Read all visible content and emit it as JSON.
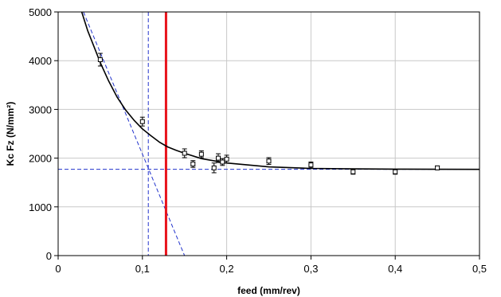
{
  "chart_data": {
    "type": "scatter",
    "title": "",
    "xlabel": "feed (mm/rev)",
    "ylabel": "Kc Fz (N/mm²)",
    "xlim": [
      0,
      0.5
    ],
    "ylim": [
      0,
      5000
    ],
    "x_ticks": [
      0,
      0.1,
      0.2,
      0.3,
      0.4,
      0.5
    ],
    "x_tick_labels": [
      "0",
      "0,1",
      "0,2",
      "0,3",
      "0,4",
      "0,5"
    ],
    "y_ticks": [
      0,
      1000,
      2000,
      3000,
      4000,
      5000
    ],
    "y_tick_labels": [
      "0",
      "1000",
      "2000",
      "3000",
      "4000",
      "5000"
    ],
    "grid": true,
    "series": [
      {
        "kind": "points_with_error_bars",
        "marker": "open-square",
        "color": "#000000",
        "x": [
          0.05,
          0.1,
          0.15,
          0.16,
          0.17,
          0.185,
          0.19,
          0.195,
          0.2,
          0.25,
          0.3,
          0.35,
          0.4,
          0.45
        ],
        "y": [
          4020,
          2750,
          2100,
          1880,
          2080,
          1800,
          2000,
          1920,
          1980,
          1940,
          1860,
          1720,
          1720,
          1800
        ],
        "error": [
          130,
          90,
          90,
          70,
          70,
          100,
          90,
          70,
          80,
          70,
          60,
          50,
          50,
          40
        ]
      },
      {
        "kind": "fit_curve",
        "color": "#000000",
        "x": [
          0.028,
          0.035,
          0.04,
          0.05,
          0.06,
          0.07,
          0.08,
          0.09,
          0.1,
          0.11,
          0.12,
          0.13,
          0.14,
          0.15,
          0.17,
          0.2,
          0.25,
          0.3,
          0.35,
          0.4,
          0.45,
          0.5
        ],
        "y": [
          5000,
          4620,
          4400,
          3960,
          3580,
          3250,
          2990,
          2780,
          2600,
          2460,
          2330,
          2230,
          2160,
          2100,
          1990,
          1900,
          1820,
          1790,
          1780,
          1775,
          1772,
          1770
        ]
      },
      {
        "kind": "tangent_line",
        "style": "dashed",
        "color": "#2233cc",
        "x": [
          0.03,
          0.15
        ],
        "y": [
          5000,
          0
        ]
      },
      {
        "kind": "horizontal_asymptote",
        "style": "dashed",
        "color": "#2233cc",
        "y": 1770
      },
      {
        "kind": "vertical_reference",
        "style": "dashed",
        "color": "#2233cc",
        "x": 0.107
      },
      {
        "kind": "vertical_marker",
        "style": "solid",
        "color": "#e8121b",
        "x": 0.128
      }
    ]
  }
}
